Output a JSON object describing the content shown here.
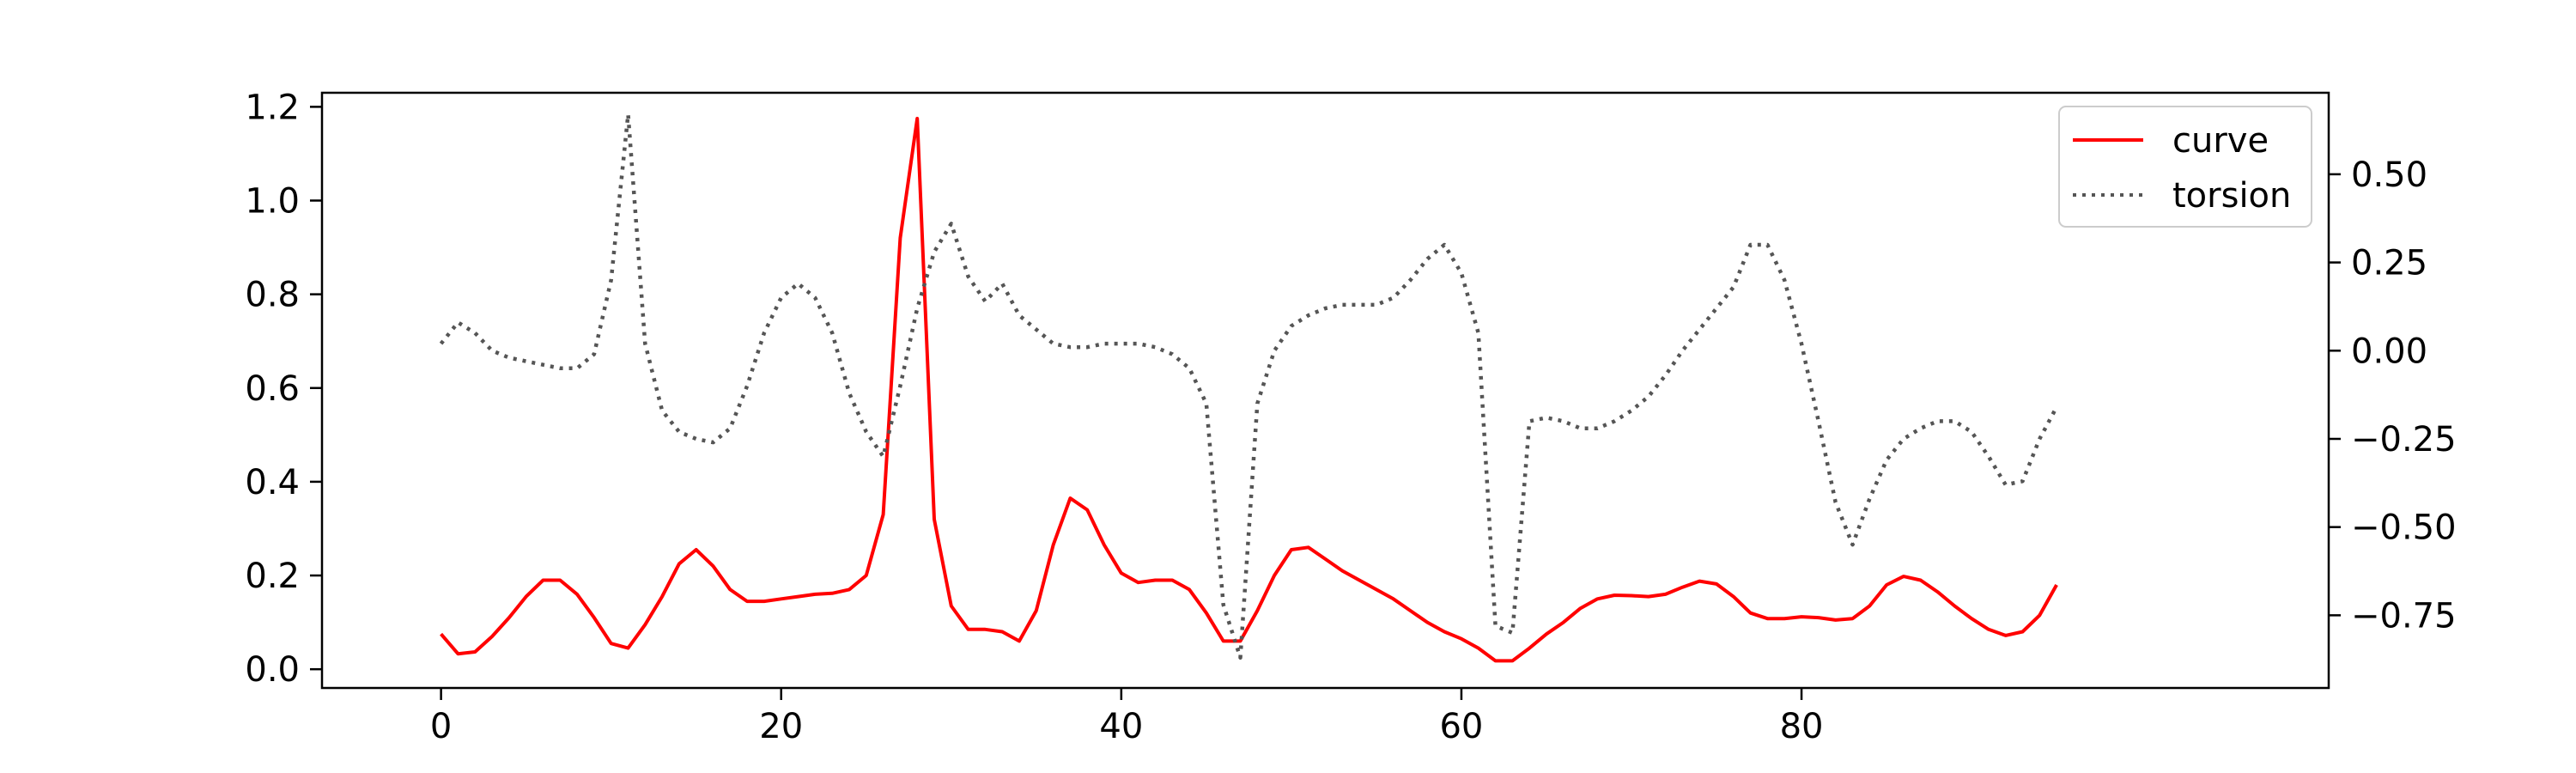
{
  "chart_data": {
    "type": "line",
    "title": "",
    "xlabel": "",
    "ylabel": "",
    "y2label": "",
    "xlim": [
      -7,
      111
    ],
    "ylim": [
      -0.04,
      1.23
    ],
    "y2lim": [
      -0.956,
      0.731
    ],
    "x_ticks": [
      0,
      20,
      40,
      60,
      80
    ],
    "x_tick_labels": [
      "0",
      "20",
      "40",
      "60",
      "80"
    ],
    "y_ticks": [
      0.0,
      0.2,
      0.4,
      0.6,
      0.8,
      1.0,
      1.2
    ],
    "y_tick_labels": [
      "0.0",
      "0.2",
      "0.4",
      "0.6",
      "0.8",
      "1.0",
      "1.2"
    ],
    "y2_ticks": [
      -0.75,
      -0.5,
      -0.25,
      0.0,
      0.25,
      0.5
    ],
    "y2_tick_labels": [
      "−0.75",
      "−0.50",
      "−0.25",
      "0.00",
      "0.25",
      "0.50"
    ],
    "grid": false,
    "legend_position": "top-right",
    "series": [
      {
        "name": "curve",
        "axis": "left",
        "color": "#ff0000",
        "style": "solid",
        "values": [
          0.075,
          0.033,
          0.037,
          0.07,
          0.11,
          0.155,
          0.19,
          0.19,
          0.16,
          0.11,
          0.055,
          0.045,
          0.095,
          0.155,
          0.225,
          0.255,
          0.22,
          0.17,
          0.145,
          0.145,
          0.15,
          0.155,
          0.16,
          0.162,
          0.17,
          0.2,
          0.33,
          0.92,
          1.175,
          0.32,
          0.135,
          0.085,
          0.085,
          0.08,
          0.06,
          0.125,
          0.265,
          0.365,
          0.34,
          0.265,
          0.205,
          0.185,
          0.19,
          0.19,
          0.17,
          0.12,
          0.06,
          0.06,
          0.125,
          0.2,
          0.255,
          0.26,
          0.235,
          0.21,
          0.19,
          0.17,
          0.15,
          0.125,
          0.1,
          0.08,
          0.065,
          0.045,
          0.018,
          0.018,
          0.045,
          0.075,
          0.1,
          0.13,
          0.15,
          0.158,
          0.157,
          0.155,
          0.16,
          0.175,
          0.188,
          0.182,
          0.155,
          0.12,
          0.108,
          0.108,
          0.112,
          0.11,
          0.105,
          0.108,
          0.135,
          0.18,
          0.198,
          0.19,
          0.165,
          0.135,
          0.108,
          0.085,
          0.072,
          0.08,
          0.115,
          0.18
        ]
      },
      {
        "name": "torsion",
        "axis": "right",
        "color": "#555555",
        "style": "dotted",
        "values": [
          0.02,
          0.08,
          0.05,
          0.0,
          -0.02,
          -0.03,
          -0.04,
          -0.05,
          -0.05,
          -0.01,
          0.2,
          0.67,
          0.02,
          -0.17,
          -0.23,
          -0.25,
          -0.26,
          -0.22,
          -0.1,
          0.05,
          0.15,
          0.19,
          0.15,
          0.05,
          -0.12,
          -0.23,
          -0.3,
          -0.1,
          0.12,
          0.28,
          0.36,
          0.21,
          0.14,
          0.19,
          0.1,
          0.06,
          0.02,
          0.01,
          0.01,
          0.02,
          0.02,
          0.02,
          0.01,
          -0.01,
          -0.05,
          -0.15,
          -0.72,
          -0.87,
          -0.15,
          0.0,
          0.07,
          0.1,
          0.12,
          0.13,
          0.13,
          0.13,
          0.15,
          0.2,
          0.26,
          0.3,
          0.22,
          0.05,
          -0.78,
          -0.8,
          -0.2,
          -0.19,
          -0.2,
          -0.22,
          -0.22,
          -0.2,
          -0.17,
          -0.13,
          -0.07,
          0.0,
          0.06,
          0.12,
          0.18,
          0.3,
          0.3,
          0.2,
          0.02,
          -0.2,
          -0.43,
          -0.55,
          -0.42,
          -0.31,
          -0.25,
          -0.22,
          -0.2,
          -0.2,
          -0.23,
          -0.3,
          -0.38,
          -0.37,
          -0.25,
          -0.16
        ]
      }
    ]
  }
}
